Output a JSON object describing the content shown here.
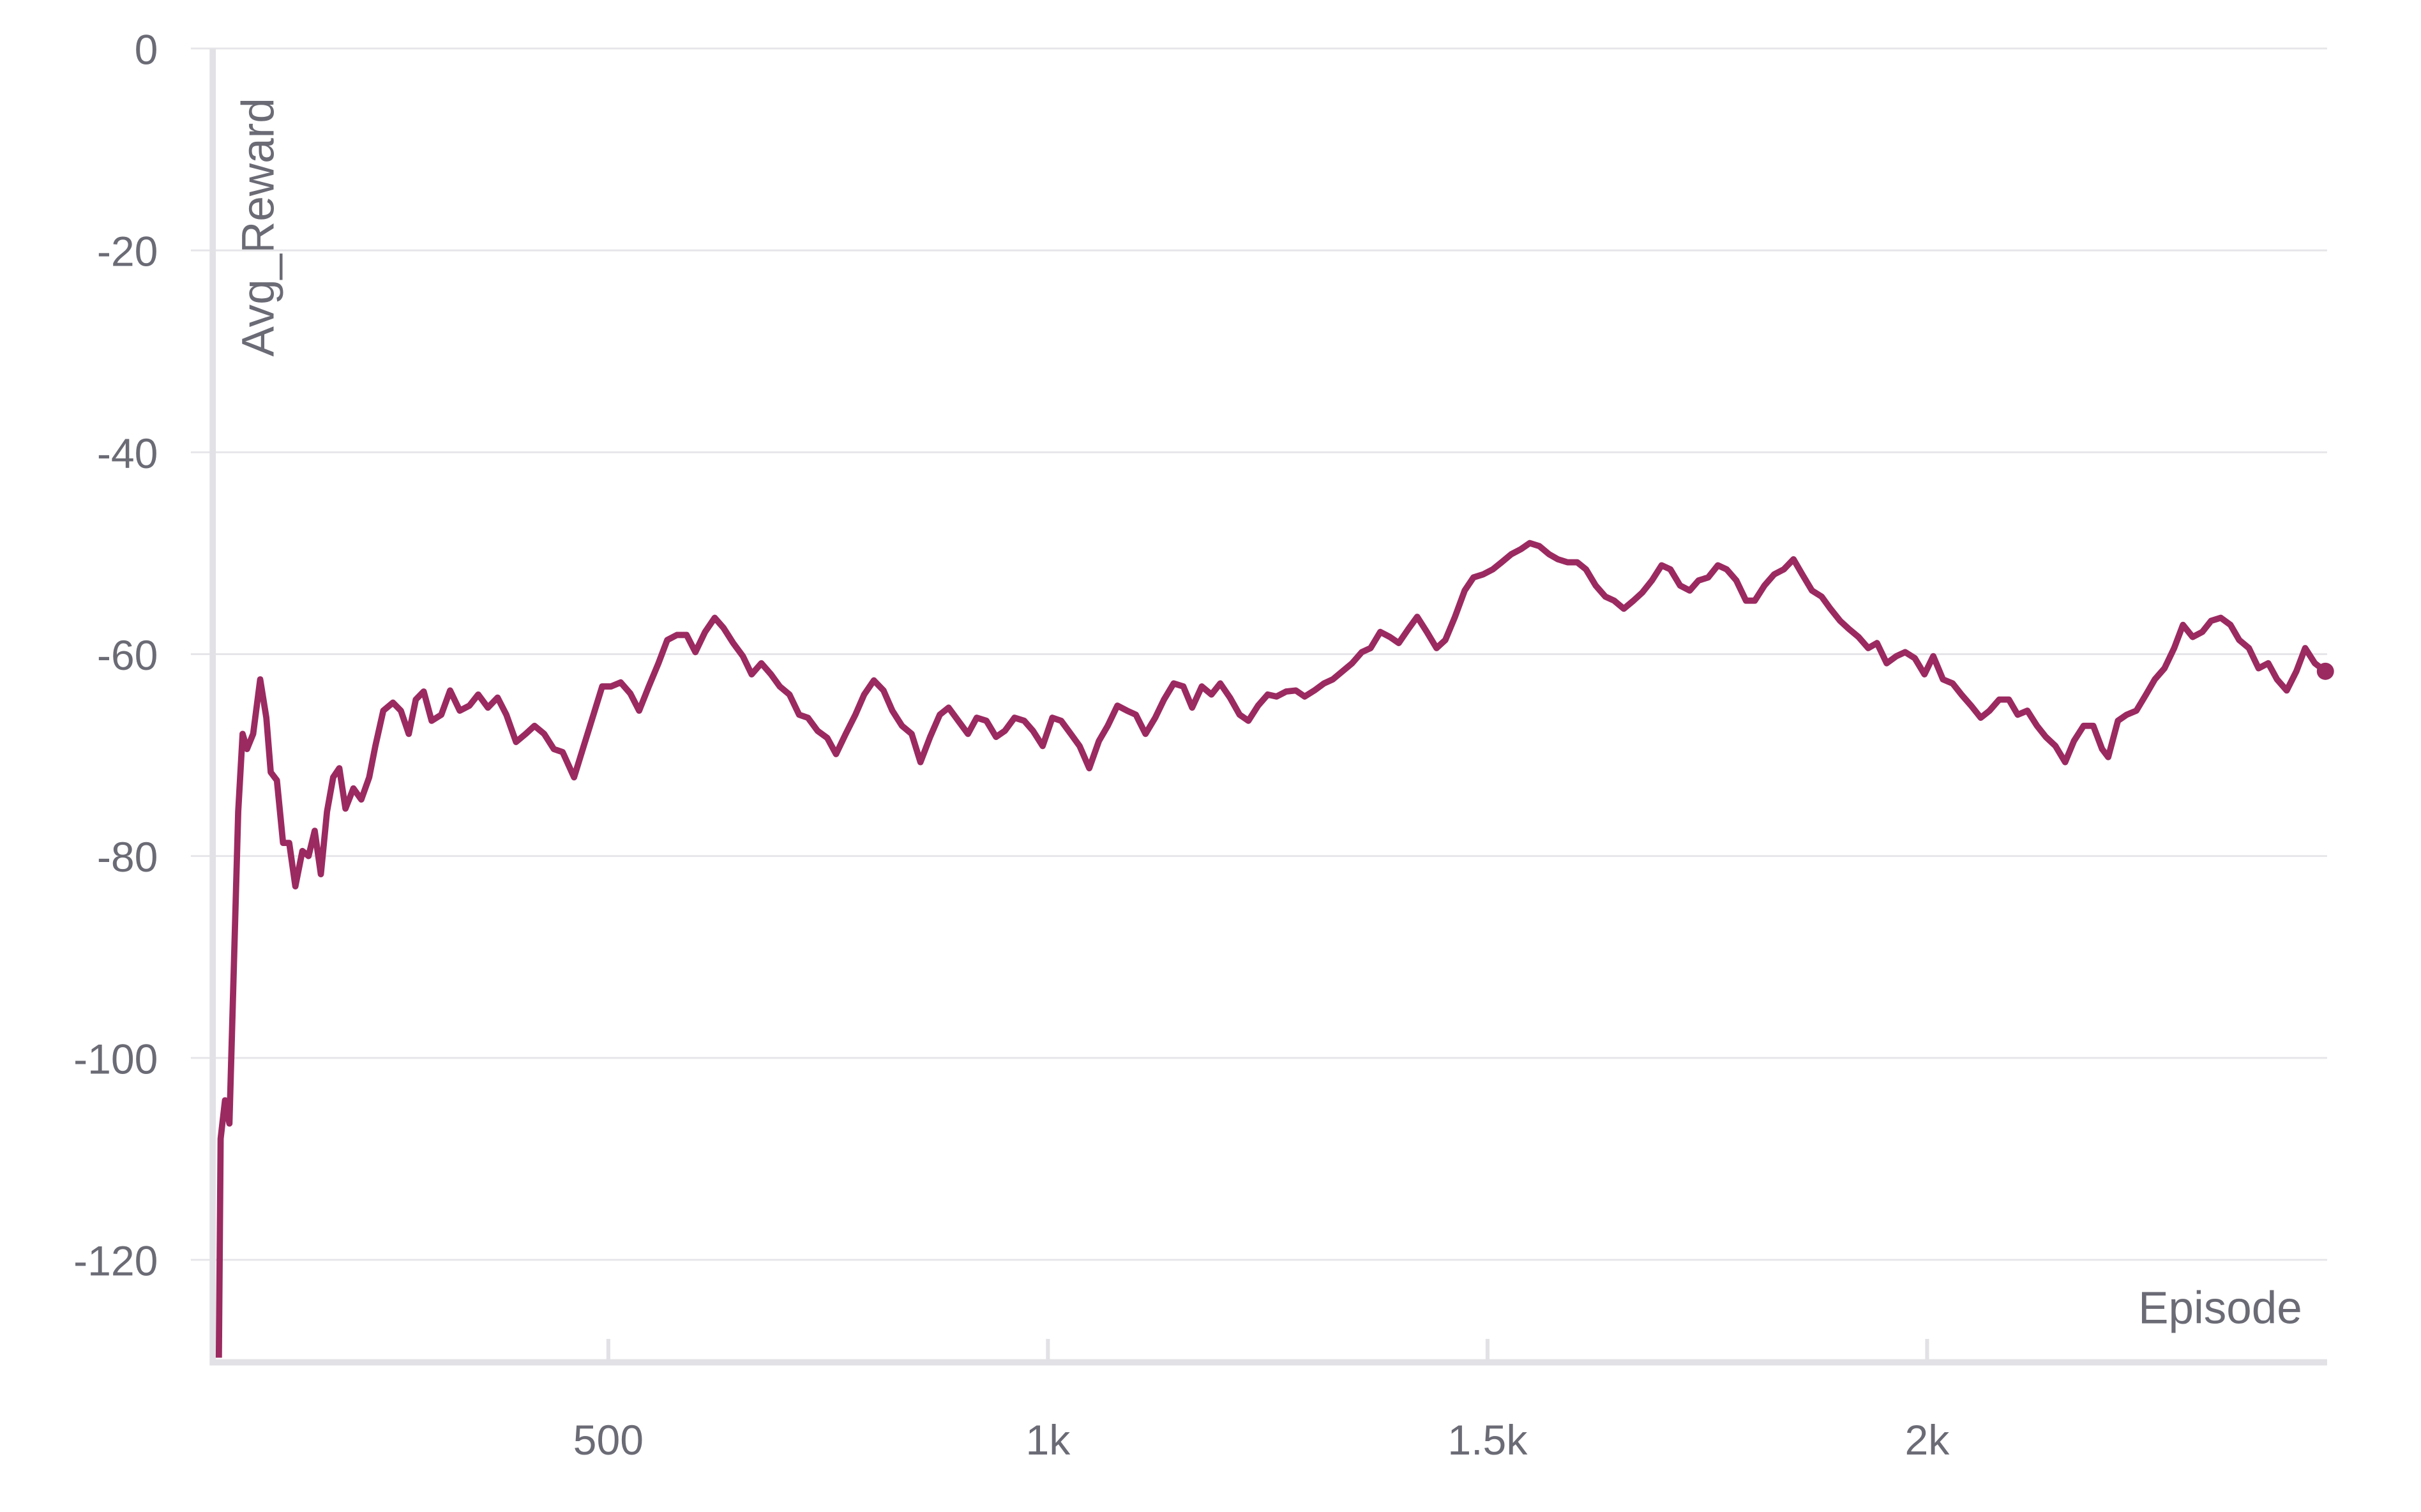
{
  "chart_data": {
    "type": "line",
    "x_label": "Episode",
    "y_label": "Avg_Reward",
    "xlim": [
      50,
      2455
    ],
    "ylim": [
      -130,
      0
    ],
    "xticks": [
      {
        "value": 500,
        "label": "500"
      },
      {
        "value": 1000,
        "label": "1k"
      },
      {
        "value": 1500,
        "label": "1.5k"
      },
      {
        "value": 2000,
        "label": "2k"
      }
    ],
    "yticks": [
      0,
      -20,
      -40,
      -60,
      -80,
      -100,
      -120
    ],
    "grid": true,
    "series": [
      {
        "name": "Avg_Reward",
        "color": "#9b2a61",
        "x": [
          57,
          59,
          64,
          69,
          75,
          79,
          84,
          89,
          96,
          104,
          111,
          116,
          123,
          130,
          137,
          144,
          152,
          159,
          166,
          173,
          180,
          187,
          194,
          201,
          210,
          219,
          228,
          235,
          244,
          255,
          264,
          273,
          281,
          290,
          299,
          310,
          320,
          331,
          342,
          352,
          363,
          374,
          384,
          395,
          406,
          416,
          427,
          438,
          448,
          461,
          472,
          482,
          493,
          503,
          514,
          525,
          535,
          546,
          557,
          567,
          578,
          589,
          599,
          610,
          621,
          631,
          642,
          653,
          663,
          674,
          685,
          695,
          706,
          717,
          727,
          738,
          749,
          759,
          770,
          781,
          791,
          802,
          813,
          823,
          834,
          845,
          855,
          866,
          877,
          887,
          898,
          909,
          919,
          930,
          941,
          951,
          962,
          973,
          983,
          994,
          1005,
          1015,
          1026,
          1036,
          1047,
          1058,
          1068,
          1079,
          1090,
          1100,
          1111,
          1122,
          1132,
          1143,
          1154,
          1164,
          1175,
          1186,
          1196,
          1207,
          1218,
          1228,
          1239,
          1250,
          1260,
          1271,
          1282,
          1292,
          1303,
          1314,
          1324,
          1335,
          1346,
          1357,
          1367,
          1378,
          1389,
          1399,
          1410,
          1420,
          1431,
          1442,
          1452,
          1463,
          1474,
          1484,
          1495,
          1506,
          1516,
          1527,
          1538,
          1548,
          1559,
          1570,
          1580,
          1591,
          1602,
          1612,
          1623,
          1634,
          1644,
          1655,
          1666,
          1676,
          1687,
          1698,
          1708,
          1719,
          1730,
          1740,
          1751,
          1762,
          1772,
          1783,
          1794,
          1804,
          1815,
          1826,
          1837,
          1848,
          1858,
          1869,
          1880,
          1890,
          1901,
          1911,
          1922,
          1933,
          1943,
          1954,
          1965,
          1975,
          1986,
          1997,
          2007,
          2018,
          2029,
          2039,
          2050,
          2061,
          2071,
          2082,
          2093,
          2103,
          2114,
          2125,
          2135,
          2146,
          2157,
          2167,
          2178,
          2189,
          2199,
          2206,
          2217,
          2227,
          2238,
          2249,
          2259,
          2270,
          2281,
          2291,
          2302,
          2313,
          2323,
          2334,
          2345,
          2355,
          2366,
          2377,
          2388,
          2398,
          2409,
          2420,
          2430,
          2441,
          2453
        ],
        "values": [
          -129.7,
          -108,
          -104.2,
          -106.5,
          -88,
          -75.6,
          -67.9,
          -69.4,
          -67.9,
          -62.5,
          -66.3,
          -71.7,
          -72.5,
          -78.7,
          -78.7,
          -83,
          -79.5,
          -80,
          -77.5,
          -81.8,
          -75.6,
          -72.2,
          -71.3,
          -75.3,
          -73.3,
          -74.4,
          -72.2,
          -69.1,
          -65.6,
          -64.8,
          -65.6,
          -67.9,
          -64.5,
          -63.7,
          -66.6,
          -66,
          -63.6,
          -65.6,
          -65.1,
          -64,
          -65.3,
          -64.3,
          -66,
          -68.7,
          -67.9,
          -67.1,
          -67.9,
          -69.4,
          -69.7,
          -72.2,
          -69.1,
          -66.3,
          -63.2,
          -63.2,
          -62.8,
          -63.9,
          -65.6,
          -63.2,
          -60.9,
          -58.6,
          -58.1,
          -58.1,
          -59.8,
          -57.8,
          -56.4,
          -57.4,
          -58.9,
          -60.2,
          -62,
          -60.9,
          -62,
          -63.2,
          -64,
          -66,
          -66.3,
          -67.6,
          -68.3,
          -69.9,
          -67.9,
          -66,
          -64,
          -62.6,
          -63.6,
          -65.6,
          -67.1,
          -67.9,
          -70.7,
          -68.2,
          -66,
          -65.3,
          -66.6,
          -67.9,
          -66.3,
          -66.6,
          -68.2,
          -67.6,
          -66.3,
          -66.6,
          -67.6,
          -69.1,
          -66.3,
          -66.6,
          -67.9,
          -69.1,
          -71.3,
          -68.6,
          -67.1,
          -65.1,
          -65.6,
          -66,
          -67.9,
          -66.3,
          -64.5,
          -62.9,
          -63.2,
          -65.3,
          -63.2,
          -64,
          -62.9,
          -64.3,
          -66,
          -66.6,
          -65.1,
          -64,
          -64.2,
          -63.7,
          -63.6,
          -64.2,
          -63.6,
          -62.9,
          -62.5,
          -61.7,
          -60.9,
          -59.8,
          -59.4,
          -57.8,
          -58.3,
          -58.9,
          -57.5,
          -56.3,
          -57.8,
          -59.4,
          -58.6,
          -56.3,
          -53.7,
          -52.4,
          -52.1,
          -51.6,
          -50.9,
          -50.1,
          -49.6,
          -49,
          -49.3,
          -50.1,
          -50.6,
          -50.9,
          -50.9,
          -51.6,
          -53.2,
          -54.3,
          -54.7,
          -55.5,
          -54.7,
          -53.9,
          -52.7,
          -51.2,
          -51.6,
          -53.2,
          -53.7,
          -52.7,
          -52.4,
          -51.2,
          -51.6,
          -52.7,
          -54.7,
          -54.7,
          -53.2,
          -52.1,
          -51.6,
          -50.6,
          -52.1,
          -53.7,
          -54.3,
          -55.5,
          -56.7,
          -57.5,
          -58.3,
          -59.4,
          -58.9,
          -60.9,
          -60.2,
          -59.8,
          -60.4,
          -62,
          -60.2,
          -62.5,
          -62.9,
          -64,
          -65.1,
          -66.3,
          -65.6,
          -64.5,
          -64.5,
          -66,
          -65.6,
          -67.1,
          -68.2,
          -69.1,
          -70.7,
          -68.6,
          -67.1,
          -67.1,
          -69.4,
          -70.2,
          -66.6,
          -66,
          -65.6,
          -64,
          -62.5,
          -61.4,
          -59.4,
          -57.1,
          -58.3,
          -57.8,
          -56.7,
          -56.4,
          -57.1,
          -58.6,
          -59.4,
          -61.4,
          -60.9,
          -62.5,
          -63.6,
          -61.7,
          -59.4,
          -60.9,
          -61.7
        ]
      }
    ]
  }
}
